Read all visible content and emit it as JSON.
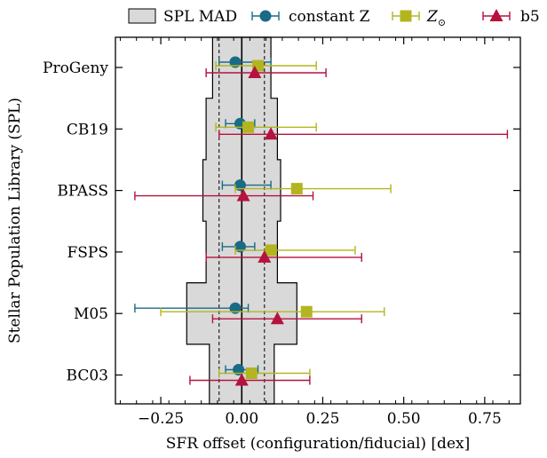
{
  "chart_data": {
    "type": "scatter",
    "title": "",
    "xlabel": "SFR offset (configuration/fiducial) [dex]",
    "ylabel": "Stellar Population Library (SPL)",
    "xlim": [
      -0.39,
      0.86
    ],
    "x_ticks": [
      "−0.25",
      "0.00",
      "0.25",
      "0.50",
      "0.75"
    ],
    "x_tick_values": [
      -0.25,
      0.0,
      0.25,
      0.5,
      0.75
    ],
    "categories": [
      "ProGeny",
      "CB19",
      "BPASS",
      "FSPS",
      "M05",
      "BC03"
    ],
    "legend_placement": "top, outside plot",
    "grid": false,
    "reference_lines": {
      "zero_solid": 0.0,
      "dashed": [
        -0.07,
        0.07
      ]
    },
    "band": {
      "name": "SPL MAD",
      "color": "#d9d9d9",
      "rows": [
        {
          "category": "ProGeny",
          "lo": -0.09,
          "hi": 0.09
        },
        {
          "category": "CB19",
          "lo": -0.11,
          "hi": 0.11
        },
        {
          "category": "BPASS",
          "lo": -0.12,
          "hi": 0.12
        },
        {
          "category": "FSPS",
          "lo": -0.11,
          "hi": 0.11
        },
        {
          "category": "M05",
          "lo": -0.17,
          "hi": 0.17
        },
        {
          "category": "BC03",
          "lo": -0.1,
          "hi": 0.1
        }
      ]
    },
    "series": [
      {
        "name": "constant Z",
        "marker": "circle",
        "color": "#1a6b86",
        "points": [
          {
            "category": "ProGeny",
            "x": -0.02,
            "lo": -0.07,
            "hi": 0.09
          },
          {
            "category": "CB19",
            "x": -0.005,
            "lo": -0.05,
            "hi": 0.04
          },
          {
            "category": "BPASS",
            "x": -0.005,
            "lo": -0.06,
            "hi": 0.09
          },
          {
            "category": "FSPS",
            "x": -0.005,
            "lo": -0.06,
            "hi": 0.04
          },
          {
            "category": "M05",
            "x": -0.02,
            "lo": -0.33,
            "hi": 0.02
          },
          {
            "category": "BC03",
            "x": -0.01,
            "lo": -0.05,
            "hi": 0.05
          }
        ]
      },
      {
        "name": "Z⊙",
        "marker": "square",
        "color": "#b3b520",
        "points": [
          {
            "category": "ProGeny",
            "x": 0.05,
            "lo": -0.08,
            "hi": 0.23
          },
          {
            "category": "CB19",
            "x": 0.02,
            "lo": -0.08,
            "hi": 0.23
          },
          {
            "category": "BPASS",
            "x": 0.17,
            "lo": -0.02,
            "hi": 0.46
          },
          {
            "category": "FSPS",
            "x": 0.09,
            "lo": -0.02,
            "hi": 0.35
          },
          {
            "category": "M05",
            "x": 0.2,
            "lo": -0.25,
            "hi": 0.44
          },
          {
            "category": "BC03",
            "x": 0.03,
            "lo": -0.07,
            "hi": 0.21
          }
        ]
      },
      {
        "name": "b5",
        "marker": "triangle",
        "color": "#b5123e",
        "points": [
          {
            "category": "ProGeny",
            "x": 0.04,
            "lo": -0.11,
            "hi": 0.26
          },
          {
            "category": "CB19",
            "x": 0.09,
            "lo": -0.07,
            "hi": 0.82
          },
          {
            "category": "BPASS",
            "x": 0.005,
            "lo": -0.33,
            "hi": 0.22
          },
          {
            "category": "FSPS",
            "x": 0.07,
            "lo": -0.11,
            "hi": 0.37
          },
          {
            "category": "M05",
            "x": 0.11,
            "lo": -0.09,
            "hi": 0.37
          },
          {
            "category": "BC03",
            "x": 0.0,
            "lo": -0.16,
            "hi": 0.21
          }
        ]
      }
    ]
  },
  "legend": {
    "band_label": "SPL MAD",
    "constant_label": "constant Z",
    "solar_label_main": "Z",
    "solar_label_sub": "⊙",
    "b5_label": "b5"
  }
}
